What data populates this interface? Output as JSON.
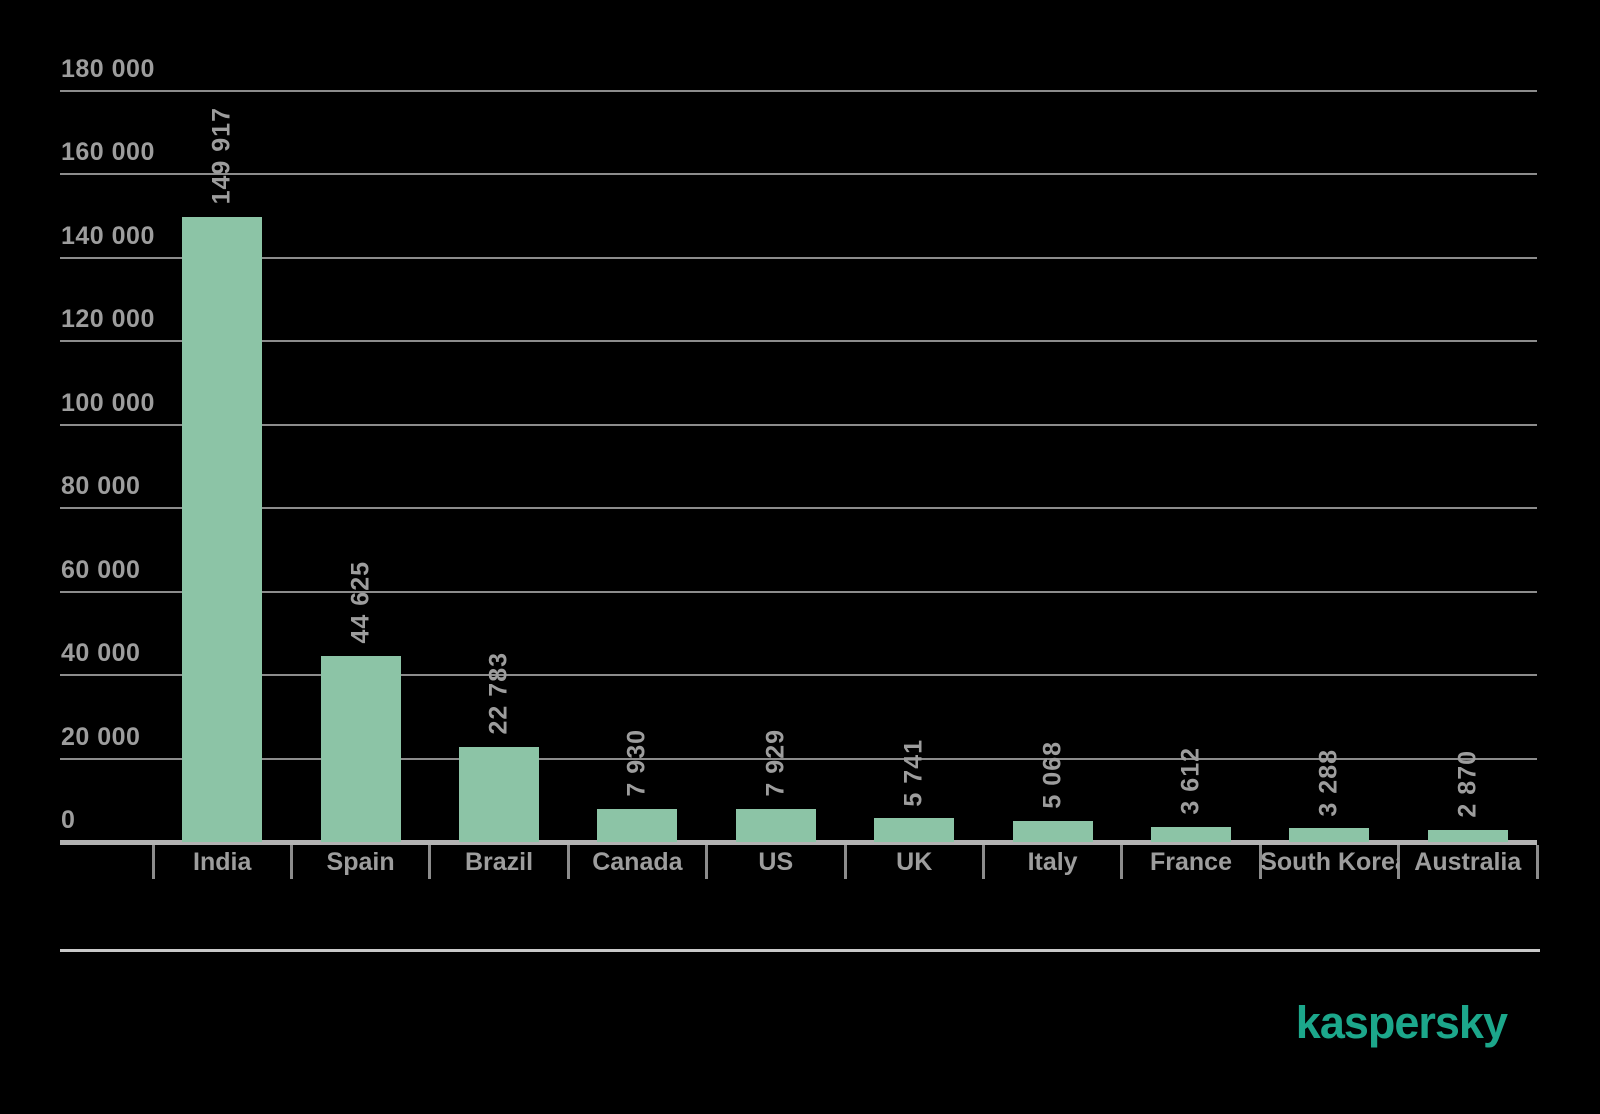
{
  "brand": {
    "logo_text": "kaspersky",
    "logo_color": "#1CA78B"
  },
  "chart_data": {
    "type": "bar",
    "title": "",
    "categories": [
      "India",
      "Spain",
      "Brazil",
      "Canada",
      "US",
      "UK",
      "Italy",
      "France",
      "South Korea",
      "Australia"
    ],
    "values": [
      149917,
      44625,
      22783,
      7930,
      7929,
      5741,
      5068,
      3612,
      3288,
      2870
    ],
    "value_labels": [
      "149 917",
      "44 625",
      "22 783",
      "7 930",
      "7 929",
      "5 741",
      "5 068",
      "3 612",
      "3 288",
      "2 870"
    ],
    "y_axis": {
      "min": 0,
      "max": 180000,
      "tick_step": 20000,
      "tick_labels": [
        "0",
        "20 000",
        "40 000",
        "60 000",
        "80 000",
        "100 000",
        "120 000",
        "140 000",
        "160 000",
        "180 000"
      ]
    },
    "grid": true,
    "legend": false,
    "value_label_rotation": -90,
    "colors": {
      "background": "#000000",
      "bar": "#8CC4A6",
      "grid": "#8C8C8C",
      "axis": "#B3B3B3",
      "text": "#9D9D9D",
      "footer_rule": "#C9C9C9"
    }
  }
}
